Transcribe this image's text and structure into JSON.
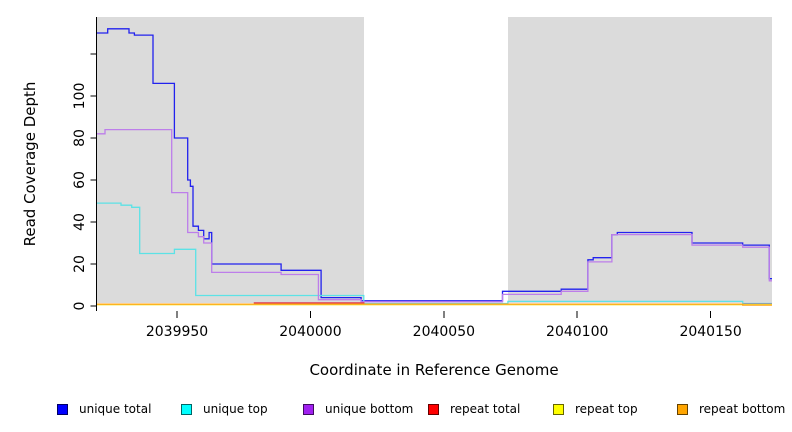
{
  "chart_data": {
    "type": "line",
    "step": "post",
    "title": "",
    "xlabel": "Coordinate in Reference Genome",
    "ylabel": "Read Coverage Depth",
    "xlim": [
      2039920,
      2040173
    ],
    "ylim": [
      -2.4,
      137.6
    ],
    "x_ticks": [
      2039950,
      2040000,
      2040050,
      2040100,
      2040150
    ],
    "x_tick_labels": [
      "2039950",
      "2040000",
      "2040050",
      "2040100",
      "2040150"
    ],
    "y_ticks": [
      0,
      20,
      40,
      60,
      80,
      100,
      120
    ],
    "y_tick_labels": [
      "0",
      "20",
      "40",
      "60",
      "80",
      "100",
      ""
    ],
    "grid": false,
    "legend_position": "bottom",
    "plot_background": "#ffffff",
    "shaded_regions": [
      {
        "x0": 2039920,
        "x1": 2040020,
        "color": "#dbdbdb"
      },
      {
        "x0": 2040074,
        "x1": 2040173,
        "color": "#dbdbdb"
      }
    ],
    "gap_region": {
      "x0": 2040020,
      "x1": 2040074,
      "color": "#ffffff"
    },
    "series": [
      {
        "name": "unique total",
        "color": "#0000ff",
        "line_color": "#2222ee",
        "points": [
          [
            2039920,
            130
          ],
          [
            2039924,
            132
          ],
          [
            2039932,
            130
          ],
          [
            2039934,
            129
          ],
          [
            2039941,
            106
          ],
          [
            2039949,
            80
          ],
          [
            2039954,
            60
          ],
          [
            2039955,
            57
          ],
          [
            2039956,
            38
          ],
          [
            2039958,
            36
          ],
          [
            2039960,
            32
          ],
          [
            2039962,
            35
          ],
          [
            2039963,
            20
          ],
          [
            2039989,
            17
          ],
          [
            2040004,
            4
          ],
          [
            2040019,
            2.5
          ],
          [
            2040072,
            7
          ],
          [
            2040094,
            8
          ],
          [
            2040104,
            22
          ],
          [
            2040106,
            23
          ],
          [
            2040113,
            34
          ],
          [
            2040115,
            35
          ],
          [
            2040143,
            30
          ],
          [
            2040162,
            29
          ],
          [
            2040172,
            13
          ]
        ]
      },
      {
        "name": "unique top",
        "color": "#00ffff",
        "line_color": "#5ce2e6",
        "points": [
          [
            2039920,
            49
          ],
          [
            2039929,
            48
          ],
          [
            2039933,
            47
          ],
          [
            2039936,
            25
          ],
          [
            2039949,
            27
          ],
          [
            2039957,
            5
          ],
          [
            2040020,
            1.2
          ],
          [
            2040074,
            2.2
          ],
          [
            2040162,
            1.2
          ]
        ]
      },
      {
        "name": "unique bottom",
        "color": "#a020f0",
        "line_color": "#bd7eea",
        "points": [
          [
            2039920,
            82
          ],
          [
            2039923,
            84
          ],
          [
            2039948,
            54
          ],
          [
            2039954,
            35
          ],
          [
            2039958,
            33
          ],
          [
            2039960,
            30
          ],
          [
            2039963,
            16
          ],
          [
            2039989,
            15
          ],
          [
            2040003,
            3
          ],
          [
            2040019,
            2
          ],
          [
            2040072,
            5.5
          ],
          [
            2040094,
            7
          ],
          [
            2040104,
            21
          ],
          [
            2040113,
            34
          ],
          [
            2040143,
            29
          ],
          [
            2040162,
            28
          ],
          [
            2040172,
            12
          ]
        ]
      },
      {
        "name": "repeat total",
        "color": "#ff0000",
        "line_color": "#e03a50",
        "points": [
          [
            2039920,
            0.8
          ],
          [
            2039979,
            1.5
          ],
          [
            2040020,
            0.8
          ]
        ]
      },
      {
        "name": "repeat top",
        "color": "#ffff00",
        "line_color": "#f2e93b",
        "points": [
          [
            2039920,
            0.6
          ]
        ]
      },
      {
        "name": "repeat bottom",
        "color": "#ffa500",
        "line_color": "#ffa216",
        "points": [
          [
            2039920,
            0.9
          ],
          [
            2040162,
            0.45
          ]
        ]
      }
    ]
  }
}
